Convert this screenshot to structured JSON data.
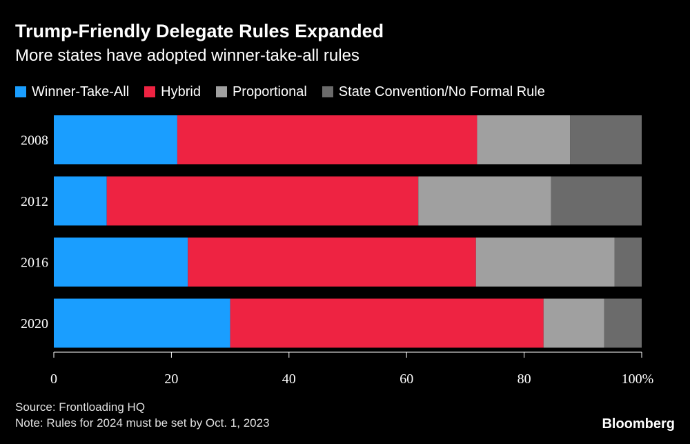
{
  "header": {
    "title": "Trump-Friendly Delegate Rules Expanded",
    "subtitle": "More states have adopted winner-take-all rules"
  },
  "footer": {
    "source": "Source: Frontloading HQ",
    "note": "Note: Rules for 2024 must be set by Oct. 1, 2023",
    "brand": "Bloomberg"
  },
  "chart_data": {
    "type": "bar",
    "orientation": "horizontal",
    "stacked": true,
    "title": "Trump-Friendly Delegate Rules Expanded",
    "subtitle": "More states have adopted winner-take-all rules",
    "categories": [
      "2008",
      "2012",
      "2016",
      "2020"
    ],
    "series": [
      {
        "name": "Winner-Take-All",
        "color": "#1a9eff",
        "values": [
          21,
          9,
          22.8,
          30
        ]
      },
      {
        "name": "Hybrid",
        "color": "#ee2342",
        "values": [
          51,
          53,
          49,
          53.3
        ]
      },
      {
        "name": "Proportional",
        "color": "#a0a0a0",
        "values": [
          15.8,
          22.6,
          23.6,
          10.3
        ]
      },
      {
        "name": "State Convention/No Formal Rule",
        "color": "#6b6b6b",
        "values": [
          12.2,
          15.4,
          4.6,
          6.4
        ]
      }
    ],
    "xlim": [
      0,
      100
    ],
    "xticks": [
      "0",
      "20",
      "40",
      "60",
      "80",
      "100%"
    ],
    "xlabel": "",
    "ylabel": "",
    "legend_position": "top",
    "grid": false
  }
}
